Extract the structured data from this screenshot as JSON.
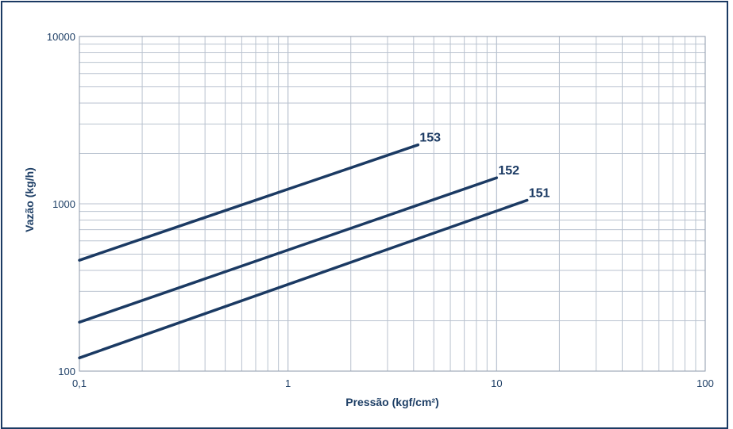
{
  "chart_data": {
    "type": "line",
    "xlabel": "Pressão (kgf/cm²)",
    "ylabel": "Vazão (kg/h)",
    "xscale": "log",
    "yscale": "log",
    "xlim": [
      0.1,
      100
    ],
    "ylim": [
      100,
      10000
    ],
    "grid": true,
    "x_tick_labels": [
      "0,1",
      "1",
      "10",
      "100"
    ],
    "x_tick_values": [
      0.1,
      1,
      10,
      100
    ],
    "y_tick_labels": [
      "100",
      "1000",
      "10000"
    ],
    "y_tick_values": [
      100,
      1000,
      10000
    ],
    "series": [
      {
        "name": "153",
        "x": [
          0.1,
          4.2
        ],
        "y": [
          460,
          2250
        ]
      },
      {
        "name": "152",
        "x": [
          0.1,
          10
        ],
        "y": [
          196,
          1430
        ]
      },
      {
        "name": "151",
        "x": [
          0.1,
          14
        ],
        "y": [
          120,
          1050
        ]
      }
    ],
    "line_color": "#1b3a63",
    "grid_color": "#b9c2cf",
    "text_color": "#1e3f66"
  }
}
